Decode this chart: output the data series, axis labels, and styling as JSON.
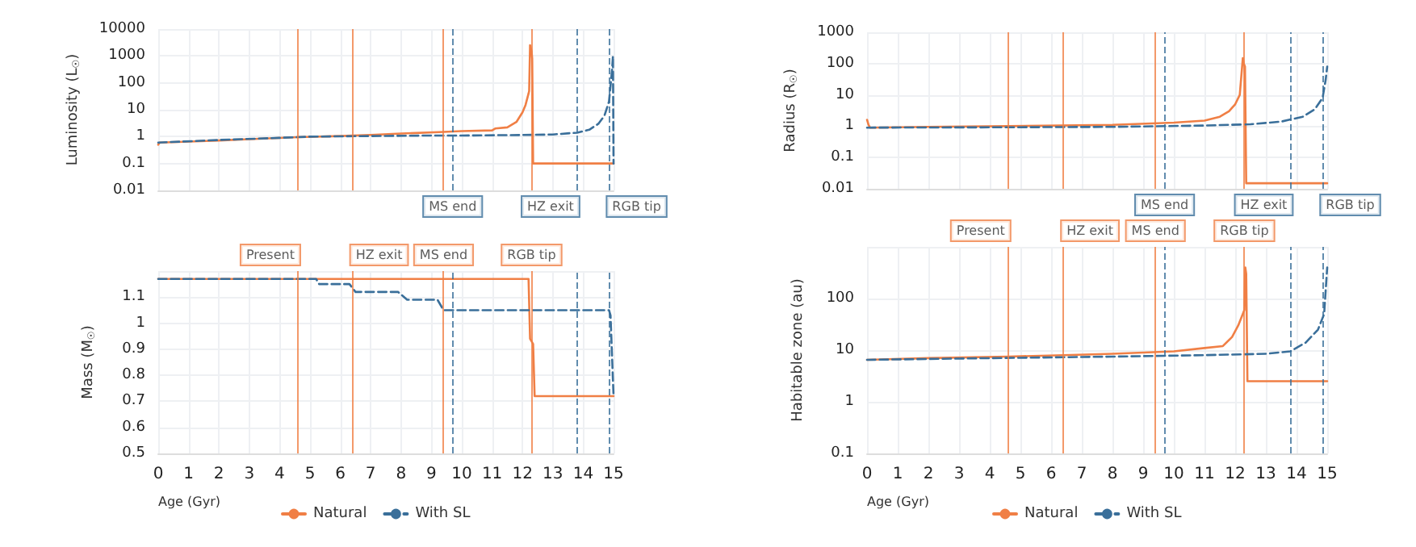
{
  "chart_data": [
    {
      "type": "line",
      "ylabel": "Luminosity (L$_{☉}$)",
      "log": true,
      "grid": true,
      "tick_labels": "y",
      "xlim": [
        0,
        15
      ],
      "xticks": [
        0,
        1,
        2,
        3,
        4,
        5,
        6,
        7,
        8,
        9,
        10,
        11,
        12,
        13,
        14,
        15
      ],
      "ylim": [
        0.01,
        10000
      ],
      "yticks": [
        0.01,
        0.1,
        1,
        10,
        100,
        1000,
        10000
      ],
      "series": [
        {
          "color": "#f07f45",
          "line_style": "solid",
          "x": [
            0,
            0.05,
            1,
            2,
            3,
            4.6,
            6,
            7,
            8,
            9.4,
            10,
            11,
            11.1,
            11.5,
            11.8,
            12,
            12.1,
            12.2,
            12.22,
            12.25,
            12.3,
            12.32,
            12.35,
            15
          ],
          "values": [
            0.5,
            0.6,
            0.65,
            0.72,
            0.8,
            0.95,
            1.05,
            1.15,
            1.3,
            1.5,
            1.6,
            1.7,
            2,
            2.2,
            3.5,
            8,
            15,
            40,
            50,
            2500,
            1500,
            800,
            0.1,
            0.1
          ]
        },
        {
          "color": "#3a6f9a",
          "line_style": "dashed",
          "x": [
            0,
            2,
            4,
            5,
            7,
            9,
            10,
            12,
            13,
            13.8,
            14.2,
            14.5,
            14.7,
            14.85,
            14.95,
            14.98,
            15
          ],
          "values": [
            0.6,
            0.75,
            0.9,
            1,
            1.05,
            1.1,
            1.1,
            1.15,
            1.2,
            1.4,
            1.8,
            3,
            6,
            20,
            300,
            1000,
            0.1
          ]
        }
      ],
      "ref_lines": [
        {
          "axis": "x",
          "value": 4.6,
          "color": "#f07f45",
          "line_style": "solid"
        },
        {
          "axis": "x",
          "value": 6.4,
          "color": "#f07f45",
          "line_style": "solid"
        },
        {
          "axis": "x",
          "value": 9.4,
          "color": "#f07f45",
          "line_style": "solid"
        },
        {
          "axis": "x",
          "value": 12.3,
          "color": "#f07f45",
          "line_style": "solid"
        },
        {
          "axis": "x",
          "value": 9.7,
          "label": "MS end",
          "color": "#3a6f9a",
          "line_style": "dashed"
        },
        {
          "axis": "x",
          "value": 13.8,
          "label": "HZ exit",
          "color": "#3a6f9a",
          "line_style": "dashed"
        },
        {
          "axis": "x",
          "value": 14.85,
          "label": "RGB tip",
          "color": "#3a6f9a",
          "line_style": "dashed"
        }
      ]
    },
    {
      "type": "line",
      "xlabel": "Age (Gyr)",
      "ylabel": "Mass (M$_{☉}$)",
      "grid": true,
      "legend": "bottom",
      "xlim": [
        0,
        15
      ],
      "xticks": [
        0,
        1,
        2,
        3,
        4,
        5,
        6,
        7,
        8,
        9,
        10,
        11,
        12,
        13,
        14,
        15
      ],
      "ylim": [
        0.5,
        1.2
      ],
      "yticks": [
        0.5,
        0.6,
        0.7,
        0.8,
        0.9,
        1,
        1.1,
        {
          "value": 1.2,
          "label": null
        }
      ],
      "series": [
        {
          "name": "Natural",
          "color": "#f07f45",
          "line_style": "solid",
          "x": [
            0,
            12.2,
            12.25,
            12.3,
            12.35,
            12.4,
            15
          ],
          "values": [
            1.17,
            1.17,
            0.94,
            0.93,
            0.92,
            0.72,
            0.72
          ]
        },
        {
          "name": "With SL",
          "color": "#3a6f9a",
          "line_style": "dashed",
          "x": [
            0,
            5.2,
            5.3,
            6.3,
            6.5,
            7.9,
            8.2,
            9.2,
            9.4,
            14.85,
            14.9,
            15
          ],
          "values": [
            1.17,
            1.17,
            1.15,
            1.15,
            1.12,
            1.12,
            1.09,
            1.09,
            1.05,
            1.05,
            1.03,
            0.72
          ]
        }
      ],
      "ref_lines": [
        {
          "axis": "x",
          "value": 4.6,
          "label": "Present",
          "color": "#f07f45",
          "line_style": "solid"
        },
        {
          "axis": "x",
          "value": 6.4,
          "label": "HZ exit",
          "color": "#f07f45",
          "line_style": "solid"
        },
        {
          "axis": "x",
          "value": 9.4,
          "label": "MS end",
          "color": "#f07f45",
          "line_style": "solid"
        },
        {
          "axis": "x",
          "value": 12.3,
          "label": "RGB tip",
          "color": "#f07f45",
          "line_style": "solid"
        },
        {
          "axis": "x",
          "value": 9.7,
          "color": "#3a6f9a",
          "line_style": "dashed"
        },
        {
          "axis": "x",
          "value": 13.8,
          "color": "#3a6f9a",
          "line_style": "dashed"
        },
        {
          "axis": "x",
          "value": 14.85,
          "color": "#3a6f9a",
          "line_style": "dashed"
        }
      ]
    },
    {
      "type": "line",
      "ylabel": "Radius (R$_{☉}$)",
      "log": true,
      "grid": true,
      "tick_labels": "y",
      "xlim": [
        0,
        15
      ],
      "xticks": [
        0,
        1,
        2,
        3,
        4,
        5,
        6,
        7,
        8,
        9,
        10,
        11,
        12,
        13,
        14,
        15
      ],
      "ylim": [
        0.01,
        1000
      ],
      "yticks": [
        0.01,
        0.1,
        1,
        10,
        100,
        1000
      ],
      "series": [
        {
          "color": "#f07f45",
          "line_style": "solid",
          "x": [
            0,
            0.05,
            0.1,
            2,
            4.6,
            8,
            10,
            11,
            11.5,
            11.8,
            12,
            12.15,
            12.25,
            12.28,
            12.32,
            12.36,
            15
          ],
          "values": [
            1.6,
            1.1,
            0.9,
            0.95,
            1,
            1.1,
            1.3,
            1.5,
            2,
            3,
            5,
            10,
            150,
            100,
            80,
            0.015,
            0.015
          ]
        },
        {
          "color": "#3a6f9a",
          "line_style": "dashed",
          "x": [
            0,
            4,
            8,
            11,
            12.5,
            13.5,
            14.2,
            14.6,
            14.85,
            14.95,
            15
          ],
          "values": [
            0.9,
            0.92,
            0.95,
            1.05,
            1.15,
            1.4,
            2,
            3.5,
            8,
            30,
            80
          ]
        }
      ],
      "ref_lines": [
        {
          "axis": "x",
          "value": 4.6,
          "color": "#f07f45",
          "line_style": "solid"
        },
        {
          "axis": "x",
          "value": 6.4,
          "color": "#f07f45",
          "line_style": "solid"
        },
        {
          "axis": "x",
          "value": 9.4,
          "color": "#f07f45",
          "line_style": "solid"
        },
        {
          "axis": "x",
          "value": 12.3,
          "color": "#f07f45",
          "line_style": "solid"
        },
        {
          "axis": "x",
          "value": 9.7,
          "label": "MS end",
          "color": "#3a6f9a",
          "line_style": "dashed"
        },
        {
          "axis": "x",
          "value": 13.8,
          "label": "HZ exit",
          "color": "#3a6f9a",
          "line_style": "dashed"
        },
        {
          "axis": "x",
          "value": 14.85,
          "label": "RGB tip",
          "color": "#3a6f9a",
          "line_style": "dashed"
        }
      ]
    },
    {
      "type": "line",
      "xlabel": "Age (Gyr)",
      "ylabel": "Habitable zone (au)",
      "log": true,
      "grid": true,
      "legend": "bottom",
      "xlim": [
        0,
        15
      ],
      "xticks": [
        0,
        1,
        2,
        3,
        4,
        5,
        6,
        7,
        8,
        9,
        10,
        11,
        12,
        13,
        14,
        15
      ],
      "ylim": [
        0.1,
        1000
      ],
      "yticks": [
        0.1,
        1,
        10,
        100,
        {
          "value": 1000,
          "label": null
        }
      ],
      "series": [
        {
          "name": "Natural",
          "color": "#f07f45",
          "line_style": "solid",
          "x": [
            0,
            2,
            4.6,
            6.4,
            8,
            10,
            11,
            11.6,
            11.9,
            12.1,
            12.3,
            12.33,
            12.36,
            12.4,
            15
          ],
          "values": [
            6.5,
            7,
            7.5,
            8,
            8.5,
            9.5,
            11,
            12,
            18,
            30,
            60,
            400,
            300,
            2.5,
            2.5
          ]
        },
        {
          "name": "With SL",
          "color": "#3a6f9a",
          "line_style": "dashed",
          "x": [
            0,
            4,
            8,
            11,
            13,
            13.8,
            14.3,
            14.7,
            14.9,
            15
          ],
          "values": [
            6.5,
            7,
            7.5,
            8,
            8.5,
            9.5,
            14,
            25,
            50,
            400
          ]
        }
      ],
      "ref_lines": [
        {
          "axis": "x",
          "value": 4.6,
          "label": "Present",
          "color": "#f07f45",
          "line_style": "solid"
        },
        {
          "axis": "x",
          "value": 6.4,
          "label": "HZ exit",
          "color": "#f07f45",
          "line_style": "solid"
        },
        {
          "axis": "x",
          "value": 9.4,
          "label": "MS end",
          "color": "#f07f45",
          "line_style": "solid"
        },
        {
          "axis": "x",
          "value": 12.3,
          "label": "RGB tip",
          "color": "#f07f45",
          "line_style": "solid"
        },
        {
          "axis": "x",
          "value": 9.7,
          "color": "#3a6f9a",
          "line_style": "dashed"
        },
        {
          "axis": "x",
          "value": 13.8,
          "color": "#3a6f9a",
          "line_style": "dashed"
        },
        {
          "axis": "x",
          "value": 14.85,
          "color": "#3a6f9a",
          "line_style": "dashed"
        }
      ]
    }
  ]
}
